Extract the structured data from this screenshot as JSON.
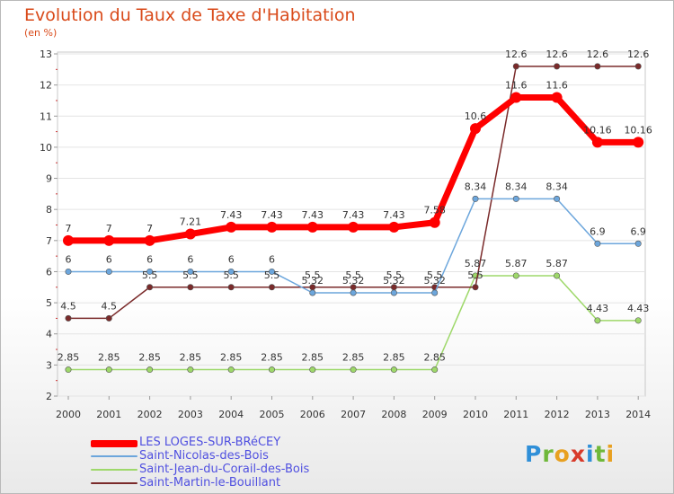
{
  "title": "Evolution du Taux de Taxe d'Habitation",
  "subtitle": "(en %)",
  "logo_text": "Proxiti",
  "chart_data": {
    "type": "line",
    "ylim": [
      2,
      13
    ],
    "yticks": [
      "2",
      "3",
      "4",
      "5",
      "6",
      "7",
      "8",
      "9",
      "10",
      "11",
      "12",
      "13"
    ],
    "x": [
      "2000",
      "2001",
      "2002",
      "2003",
      "2004",
      "2005",
      "2006",
      "2007",
      "2008",
      "2009",
      "2010",
      "2011",
      "2012",
      "2013",
      "2014"
    ],
    "grid": "horizontal",
    "legend_position": "bottom-left",
    "series": [
      {
        "name": "LES LOGES-SUR-BRéCEY",
        "color": "#ff0000",
        "values": [
          7,
          7,
          7,
          7.21,
          7.43,
          7.43,
          7.43,
          7.43,
          7.43,
          7.58,
          10.6,
          11.6,
          11.6,
          10.16,
          10.16
        ],
        "labels": [
          "7",
          "7",
          "7",
          "7.21",
          "7.43",
          "7.43",
          "7.43",
          "7.43",
          "7.43",
          "7.58",
          "10.6",
          "11.6",
          "11.6",
          "10.16",
          "10.16"
        ]
      },
      {
        "name": "Saint-Nicolas-des-Bois",
        "color": "#6ca6dc",
        "values": [
          6,
          6,
          6,
          6,
          6,
          6,
          5.32,
          5.32,
          5.32,
          5.32,
          8.34,
          8.34,
          8.34,
          6.9,
          6.9
        ],
        "labels": [
          "6",
          "6",
          "6",
          "6",
          "6",
          "6",
          "5.32",
          "5.32",
          "5.32",
          "5.32",
          "8.34",
          "8.34",
          "8.34",
          "6.9",
          "6.9"
        ]
      },
      {
        "name": "Saint-Jean-du-Corail-des-Bois",
        "color": "#9ed86a",
        "values": [
          2.85,
          2.85,
          2.85,
          2.85,
          2.85,
          2.85,
          2.85,
          2.85,
          2.85,
          2.85,
          5.87,
          5.87,
          5.87,
          4.43,
          4.43
        ],
        "labels": [
          "2.85",
          "2.85",
          "2.85",
          "2.85",
          "2.85",
          "2.85",
          "2.85",
          "2.85",
          "2.85",
          "2.85",
          "5.87",
          "5.87",
          "5.87",
          "4.43",
          "4.43"
        ]
      },
      {
        "name": "Saint-Martin-le-Bouillant",
        "color": "#7a2a2a",
        "values": [
          4.5,
          4.5,
          5.5,
          5.5,
          5.5,
          5.5,
          5.5,
          5.5,
          5.5,
          5.5,
          5.5,
          12.6,
          12.6,
          12.6,
          12.6
        ],
        "labels": [
          "4.5",
          "4.5",
          "5.5",
          "5.5",
          "5.5",
          "5.5",
          "5.5",
          "5.5",
          "5.5",
          "5.5",
          "5.5",
          "12.6",
          "12.6",
          "12.6",
          "12.6"
        ]
      }
    ]
  }
}
